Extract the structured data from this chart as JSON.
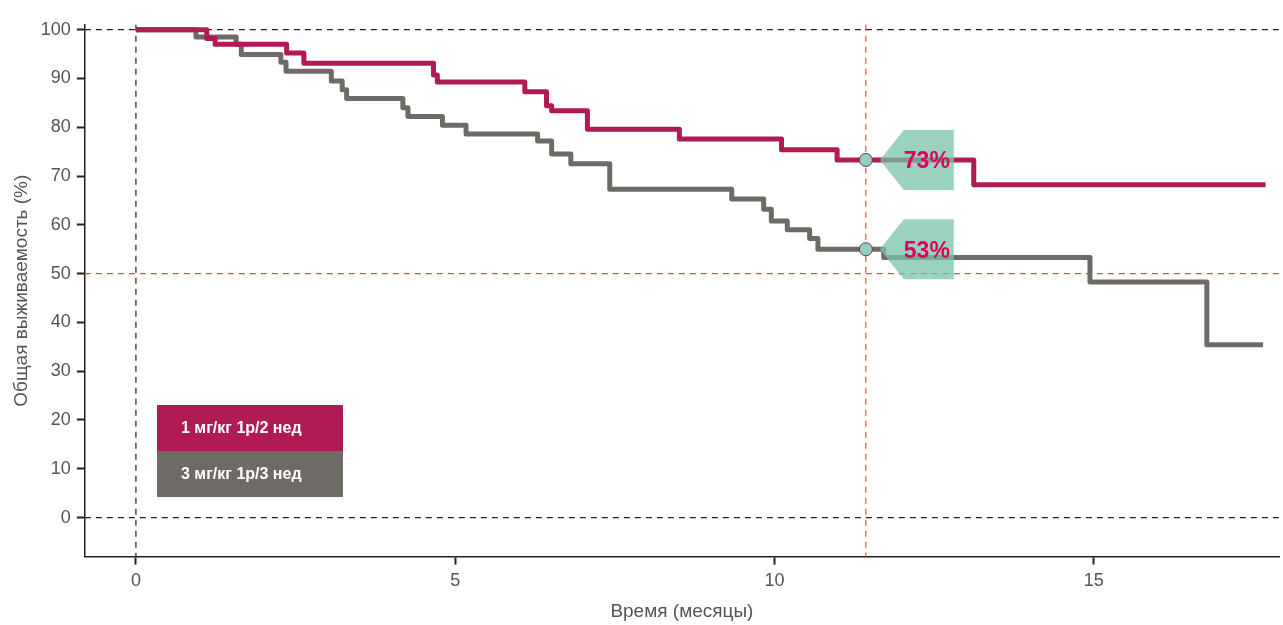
{
  "chart_data": {
    "type": "step",
    "xlabel": "Время (месяцы)",
    "ylabel": "Общая выживаемость (%)",
    "xlim": [
      -0.8,
      17.9
    ],
    "xticks": [
      0,
      5,
      10,
      15
    ],
    "ylim": [
      -8,
      101
    ],
    "yticks": [
      0,
      10,
      20,
      30,
      40,
      50,
      60,
      70,
      80,
      90,
      100
    ],
    "grid": false,
    "legend": "bottom left",
    "marker": "none",
    "line_style": "solid",
    "series": [
      {
        "name": "1 мг/кг 1р/2 нед",
        "color": "#b01a55",
        "x": [
          0,
          1.11,
          1.24,
          2.36,
          2.63,
          4.66,
          4.72,
          6.09,
          6.43,
          6.51,
          7.07,
          8.51,
          10.11,
          10.98,
          13.12,
          17.69
        ],
        "values": [
          100,
          98.2,
          97,
          95.2,
          93.1,
          90.7,
          89.3,
          87.3,
          84.4,
          83.4,
          79.6,
          77.6,
          75.4,
          73.3,
          68.2,
          68.2
        ]
      },
      {
        "name": "3 мг/кг 1р/3 нед",
        "color": "#6e6a66",
        "x": [
          0,
          0.94,
          1.57,
          1.65,
          2.27,
          2.35,
          3.06,
          3.23,
          3.3,
          4.18,
          4.26,
          4.8,
          5.17,
          6.29,
          6.51,
          6.81,
          7.42,
          9.33,
          9.83,
          9.95,
          10.2,
          10.55,
          10.68,
          11.71,
          14.94,
          16.77,
          17.65
        ],
        "values": [
          100,
          98.5,
          97,
          94.9,
          93.3,
          91.5,
          89.5,
          87.7,
          85.9,
          84,
          82.2,
          80.4,
          78.6,
          77.2,
          74.5,
          72.5,
          67.3,
          65.3,
          63.2,
          60.8,
          59,
          57.2,
          55,
          53.3,
          48.3,
          35.4,
          35.4
        ]
      }
    ],
    "ref_lines": [
      {
        "axis": "y",
        "value": 100,
        "color": "#222222",
        "line_style": "dashed"
      },
      {
        "axis": "y",
        "value": 0,
        "color": "#222222",
        "line_style": "dashed"
      },
      {
        "axis": "x",
        "value": 0,
        "color": "#222222",
        "line_style": "dashed"
      },
      {
        "axis": "y",
        "value": 50,
        "color": "#e8502a",
        "line_style": "dashed"
      },
      {
        "axis": "x",
        "value": 11.43,
        "color": "#e8502a",
        "line_style": "dashed"
      }
    ],
    "annotations": [
      {
        "text": "73%",
        "x": 11.43,
        "y": 73.3
      },
      {
        "text": "53%",
        "x": 11.43,
        "y": 55
      }
    ]
  }
}
